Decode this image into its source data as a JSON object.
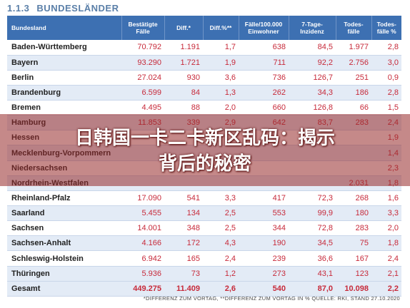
{
  "heading": {
    "number": "1.1.3",
    "title": "BUNDESLÄNDER"
  },
  "table": {
    "columns": [
      "Bundesland",
      "Bestätigte Fälle",
      "Diff.*",
      "Diff.%**",
      "Fälle/100.000 Einwohner",
      "7-Tage-Inzidenz",
      "Todes-fälle",
      "Todes-fälle %"
    ],
    "rows": [
      [
        "Baden-Württemberg",
        "70.792",
        "1.191",
        "1,7",
        "638",
        "84,5",
        "1.977",
        "2,8"
      ],
      [
        "Bayern",
        "93.290",
        "1.721",
        "1,9",
        "711",
        "92,2",
        "2.756",
        "3,0"
      ],
      [
        "Berlin",
        "27.024",
        "930",
        "3,6",
        "736",
        "126,7",
        "251",
        "0,9"
      ],
      [
        "Brandenburg",
        "6.599",
        "84",
        "1,3",
        "262",
        "34,3",
        "186",
        "2,8"
      ],
      [
        "Bremen",
        "4.495",
        "88",
        "2,0",
        "660",
        "126,8",
        "66",
        "1,5"
      ],
      [
        "Hamburg",
        "11.853",
        "339",
        "2,9",
        "642",
        "83,7",
        "283",
        "2,4"
      ],
      [
        "Hessen",
        "",
        "",
        "",
        "",
        "",
        "",
        "1,9"
      ],
      [
        "Mecklenburg-Vorpommern",
        "",
        "",
        "",
        "",
        "",
        "",
        "1,4"
      ],
      [
        "Niedersachsen",
        "",
        "",
        "",
        "",
        "",
        "",
        "2,3"
      ],
      [
        "Nordrhein-Westfalen",
        "",
        "",
        "",
        "",
        "",
        "2.031",
        "1,8"
      ],
      [
        "Rheinland-Pfalz",
        "17.090",
        "541",
        "3,3",
        "417",
        "72,3",
        "268",
        "1,6"
      ],
      [
        "Saarland",
        "5.455",
        "134",
        "2,5",
        "553",
        "99,9",
        "180",
        "3,3"
      ],
      [
        "Sachsen",
        "14.001",
        "348",
        "2,5",
        "344",
        "72,8",
        "283",
        "2,0"
      ],
      [
        "Sachsen-Anhalt",
        "4.166",
        "172",
        "4,3",
        "190",
        "34,5",
        "75",
        "1,8"
      ],
      [
        "Schleswig-Holstein",
        "6.942",
        "165",
        "2,4",
        "239",
        "36,6",
        "167",
        "2,4"
      ],
      [
        "Thüringen",
        "5.936",
        "73",
        "1,2",
        "273",
        "43,1",
        "123",
        "2,1"
      ]
    ],
    "total": [
      "Gesamt",
      "449.275",
      "11.409",
      "2,6",
      "540",
      "87,0",
      "10.098",
      "2,2"
    ]
  },
  "footnote": "*DIFFERENZ ZUM VORTAG, **DIFFERENZ ZUM VORTAG IN %  QUELLE: RKI, STAND 27.10.2020",
  "overlay": {
    "line1": "日韩国一卡二卡新区乱码：揭示",
    "line2": "背后的秘密"
  }
}
